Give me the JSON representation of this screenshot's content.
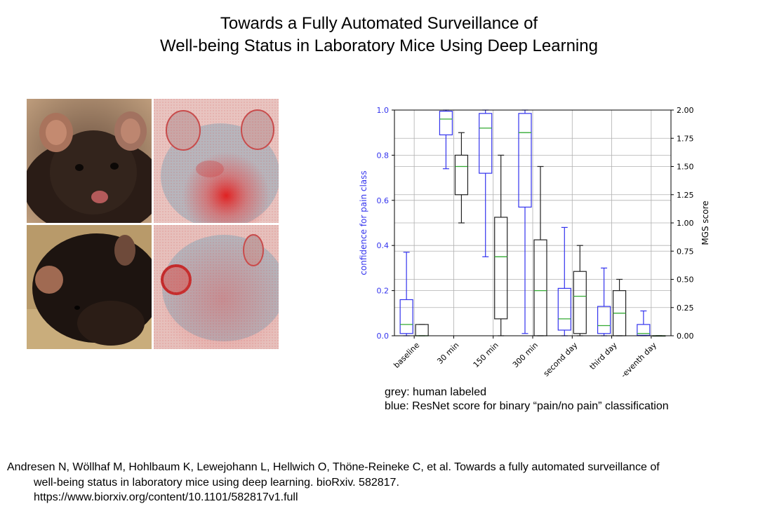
{
  "slide": {
    "title_line1": "Towards a Fully Automated Surveillance of",
    "title_line2": "Well-being Status in Laboratory Mice Using Deep Learning"
  },
  "photos": [
    {
      "name": "mouse-front-photo",
      "kind": "photo"
    },
    {
      "name": "mouse-front-heatmap",
      "kind": "heatmap"
    },
    {
      "name": "mouse-side-photo",
      "kind": "photo"
    },
    {
      "name": "mouse-side-heatmap",
      "kind": "heatmap"
    }
  ],
  "legend": {
    "line1": "grey: human labeled",
    "line2": "blue: ResNet score for binary “pain/no pain” classification"
  },
  "citation": {
    "line1": "Andresen N, Wöllhaf M, Hohlbaum K, Lewejohann L, Hellwich O, Thöne-Reineke C, et al. Towards a fully automated surveillance of",
    "line2": "well-being status in laboratory mice using deep learning. bioRxiv. 582817.",
    "line3": "https://www.biorxiv.org/content/10.1101/582817v1.full"
  },
  "chart_data": {
    "type": "box",
    "categories": [
      "baseline",
      "30 min",
      "150 min",
      "300 min",
      "second day",
      "third day",
      "seventh day"
    ],
    "category_display_labels": [
      "baseline",
      "30 min",
      "150 min",
      "300 min",
      "second day",
      "third day",
      "-eventh day"
    ],
    "ylabel_left": "confidence for pain class",
    "ylabel_right": "MGS score",
    "ylim_left": [
      0,
      1
    ],
    "ylim_right": [
      0,
      2
    ],
    "yticks_left": [
      "0.0",
      "0.2",
      "0.4",
      "0.6",
      "0.8",
      "1.0"
    ],
    "yticks_right": [
      "0.00",
      "0.25",
      "0.50",
      "0.75",
      "1.00",
      "1.25",
      "1.50",
      "1.75",
      "2.00"
    ],
    "grid": true,
    "colors": {
      "resnet": "#3333ee",
      "human": "#222222",
      "median": "#33aa33",
      "grid": "#b0b0b0"
    },
    "series": [
      {
        "axis": "left",
        "boxes": [
          {
            "whislo": 0.0,
            "q1": 0.01,
            "med": 0.05,
            "q3": 0.16,
            "whishi": 0.37
          },
          {
            "whislo": 0.74,
            "q1": 0.89,
            "med": 0.96,
            "q3": 0.995,
            "whishi": 1.0
          },
          {
            "whislo": 0.35,
            "q1": 0.72,
            "med": 0.92,
            "q3": 0.985,
            "whishi": 1.0
          },
          {
            "whislo": 0.01,
            "q1": 0.57,
            "med": 0.9,
            "q3": 0.985,
            "whishi": 1.0
          },
          {
            "whislo": 0.0,
            "q1": 0.025,
            "med": 0.075,
            "q3": 0.21,
            "whishi": 0.48
          },
          {
            "whislo": 0.0,
            "q1": 0.01,
            "med": 0.045,
            "q3": 0.13,
            "whishi": 0.3
          },
          {
            "whislo": 0.0,
            "q1": 0.002,
            "med": 0.01,
            "q3": 0.05,
            "whishi": 0.11
          }
        ]
      },
      {
        "axis": "right",
        "boxes": [
          {
            "whislo": 0.0,
            "q1": 0.0,
            "med": 0.0,
            "q3": 0.1,
            "whishi": 0.1
          },
          {
            "whislo": 1.0,
            "q1": 1.25,
            "med": 1.5,
            "q3": 1.6,
            "whishi": 1.8
          },
          {
            "whislo": 0.0,
            "q1": 0.15,
            "med": 0.7,
            "q3": 1.05,
            "whishi": 1.6
          },
          {
            "whislo": 0.0,
            "q1": 0.0,
            "med": 0.4,
            "q3": 0.85,
            "whishi": 1.5
          },
          {
            "whislo": 0.0,
            "q1": 0.02,
            "med": 0.35,
            "q3": 0.57,
            "whishi": 0.8
          },
          {
            "whislo": 0.0,
            "q1": 0.0,
            "med": 0.2,
            "q3": 0.4,
            "whishi": 0.5
          },
          {
            "whislo": 0.0,
            "q1": 0.0,
            "med": 0.0,
            "q3": 0.0,
            "whishi": 0.0
          }
        ]
      }
    ]
  }
}
